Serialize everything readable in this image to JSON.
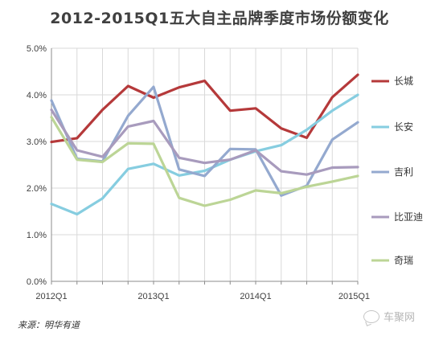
{
  "title": "2012-2015Q1五大自主品牌季度市场份额变化",
  "source_note": "来源：明华有道",
  "watermark": {
    "text": "车聚网",
    "icon": "wechat-logo-icon"
  },
  "chart_data": {
    "type": "line",
    "title": "2012-2015Q1五大自主品牌季度市场份额变化",
    "xlabel": "",
    "ylabel": "",
    "x": [
      "2012Q1",
      "2012Q2",
      "2012Q3",
      "2012Q4",
      "2013Q1",
      "2013Q2",
      "2013Q3",
      "2013Q4",
      "2014Q1",
      "2014Q2",
      "2014Q3",
      "2014Q4",
      "2015Q1"
    ],
    "x_tick_labels": [
      "2012Q1",
      "2013Q1",
      "2014Q1",
      "2015Q1"
    ],
    "x_tick_index": [
      0,
      4,
      8,
      12
    ],
    "y_ticks": [
      "0.0%",
      "1.0%",
      "2.0%",
      "3.0%",
      "4.0%",
      "5.0%"
    ],
    "ylim": [
      0,
      5
    ],
    "y_unit": "%",
    "grid": {
      "horizontal": true,
      "vertical": true
    },
    "legend_position": "right",
    "series": [
      {
        "name": "长城",
        "color": "#b5393a",
        "values": [
          2.99,
          3.07,
          3.68,
          4.19,
          3.94,
          4.16,
          4.3,
          3.66,
          3.71,
          3.28,
          3.08,
          3.95,
          4.43
        ]
      },
      {
        "name": "长安",
        "color": "#86cde0",
        "values": [
          1.66,
          1.44,
          1.78,
          2.41,
          2.52,
          2.27,
          2.37,
          2.61,
          2.79,
          2.92,
          3.25,
          3.66,
          4.0
        ]
      },
      {
        "name": "吉利",
        "color": "#94a9cf",
        "values": [
          3.88,
          2.63,
          2.57,
          3.55,
          4.17,
          2.4,
          2.26,
          2.84,
          2.83,
          1.84,
          2.05,
          3.04,
          3.41
        ]
      },
      {
        "name": "比亚迪",
        "color": "#a89bbd",
        "values": [
          3.68,
          2.81,
          2.67,
          3.32,
          3.44,
          2.65,
          2.54,
          2.61,
          2.81,
          2.36,
          2.29,
          2.44,
          2.45
        ]
      },
      {
        "name": "奇瑞",
        "color": "#bcd596",
        "values": [
          3.52,
          2.61,
          2.56,
          2.96,
          2.95,
          1.79,
          1.62,
          1.75,
          1.95,
          1.89,
          2.03,
          2.14,
          2.26
        ]
      }
    ]
  }
}
